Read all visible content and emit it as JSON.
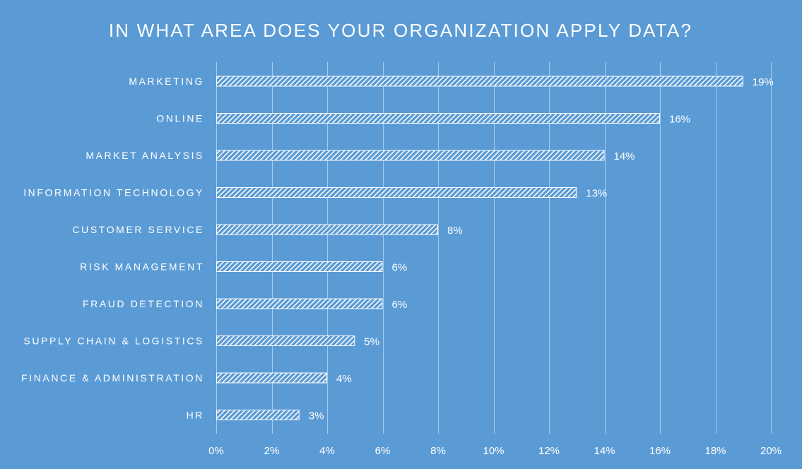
{
  "chart_data": {
    "type": "bar",
    "orientation": "horizontal",
    "title": "IN WHAT AREA DOES YOUR ORGANIZATION APPLY DATA?",
    "categories": [
      "MARKETING",
      "ONLINE",
      "MARKET ANALYSIS",
      "INFORMATION TECHNOLOGY",
      "CUSTOMER SERVICE",
      "RISK MANAGEMENT",
      "FRAUD DETECTION",
      "SUPPLY CHAIN & LOGISTICS",
      "FINANCE & ADMINISTRATION",
      "HR"
    ],
    "values": [
      19,
      16,
      14,
      13,
      8,
      6,
      6,
      5,
      4,
      3
    ],
    "value_labels": [
      "19%",
      "16%",
      "14%",
      "13%",
      "8%",
      "6%",
      "6%",
      "5%",
      "4%",
      "3%"
    ],
    "x_ticks": [
      0,
      2,
      4,
      6,
      8,
      10,
      12,
      14,
      16,
      18,
      20
    ],
    "x_tick_labels": [
      "0%",
      "2%",
      "4%",
      "6%",
      "8%",
      "10%",
      "12%",
      "14%",
      "16%",
      "18%",
      "20%"
    ],
    "xlim": [
      0,
      20
    ],
    "xlabel": "",
    "ylabel": "",
    "grid": "vertical",
    "legend": "none",
    "bar_pattern": "diagonal-stripes",
    "colors": {
      "background": "#5b9bd5",
      "bar_fill": "#ffffff",
      "text": "#ffffff",
      "grid": "#a9c9ea"
    }
  }
}
